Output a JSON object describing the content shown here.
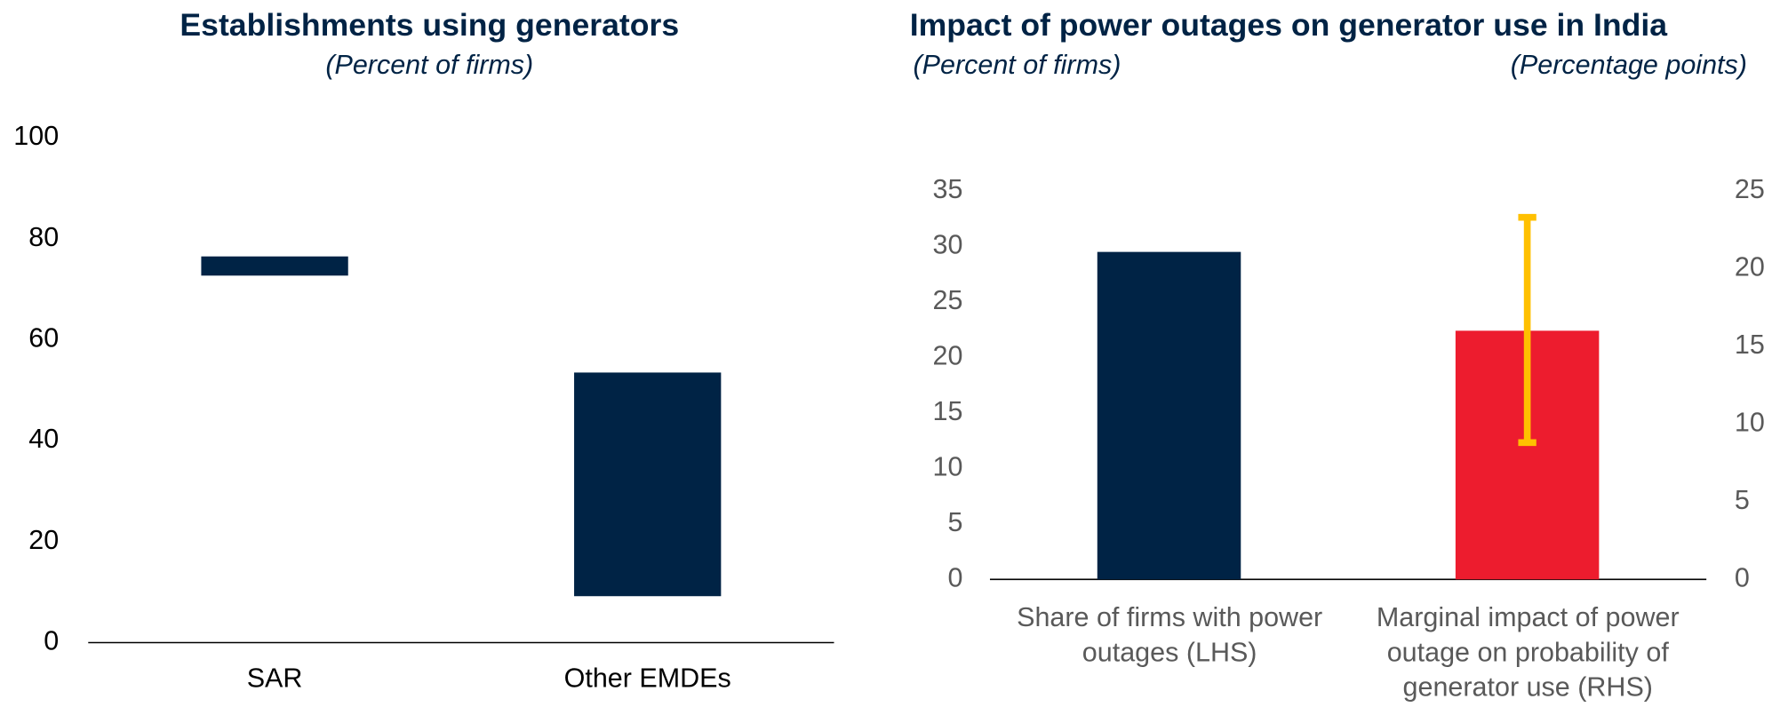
{
  "chart_data": [
    {
      "type": "range_bar",
      "title": "Establishments using generators",
      "subtitle": "(Percent of firms)",
      "categories": [
        "SAR",
        "Other EMDEs"
      ],
      "ranges": [
        [
          72.7,
          76.5
        ],
        [
          9.2,
          53.5
        ]
      ],
      "color": "#002345",
      "ylim": [
        0,
        100
      ],
      "yticks": [
        0,
        20,
        40,
        60,
        80,
        100
      ]
    },
    {
      "type": "bar",
      "title": "Impact of power outages on generator use in India",
      "subtitle": "(Percent of firms)",
      "subtitle_right": "(Percentage points)",
      "categories": [
        [
          "Share of firms with power",
          "outages (LHS)"
        ],
        [
          "Marginal impact of power",
          "outage on probability of",
          "generator use (RHS)"
        ]
      ],
      "series": [
        {
          "values": [
            29.5,
            null
          ],
          "color": "#002345",
          "axis": "y"
        },
        {
          "values": [
            null,
            16.0
          ],
          "color": "#ed1c2e",
          "axis": "y2",
          "error_range": [
            null,
            [
              8.8,
              23.3
            ]
          ],
          "error_color": "#ffc000"
        }
      ],
      "ylim": [
        0,
        35
      ],
      "yticks": [
        0,
        5,
        10,
        15,
        20,
        25,
        30,
        35
      ],
      "y2lim": [
        0,
        25
      ],
      "y2ticks": [
        0,
        5,
        10,
        15,
        20,
        25
      ]
    }
  ]
}
